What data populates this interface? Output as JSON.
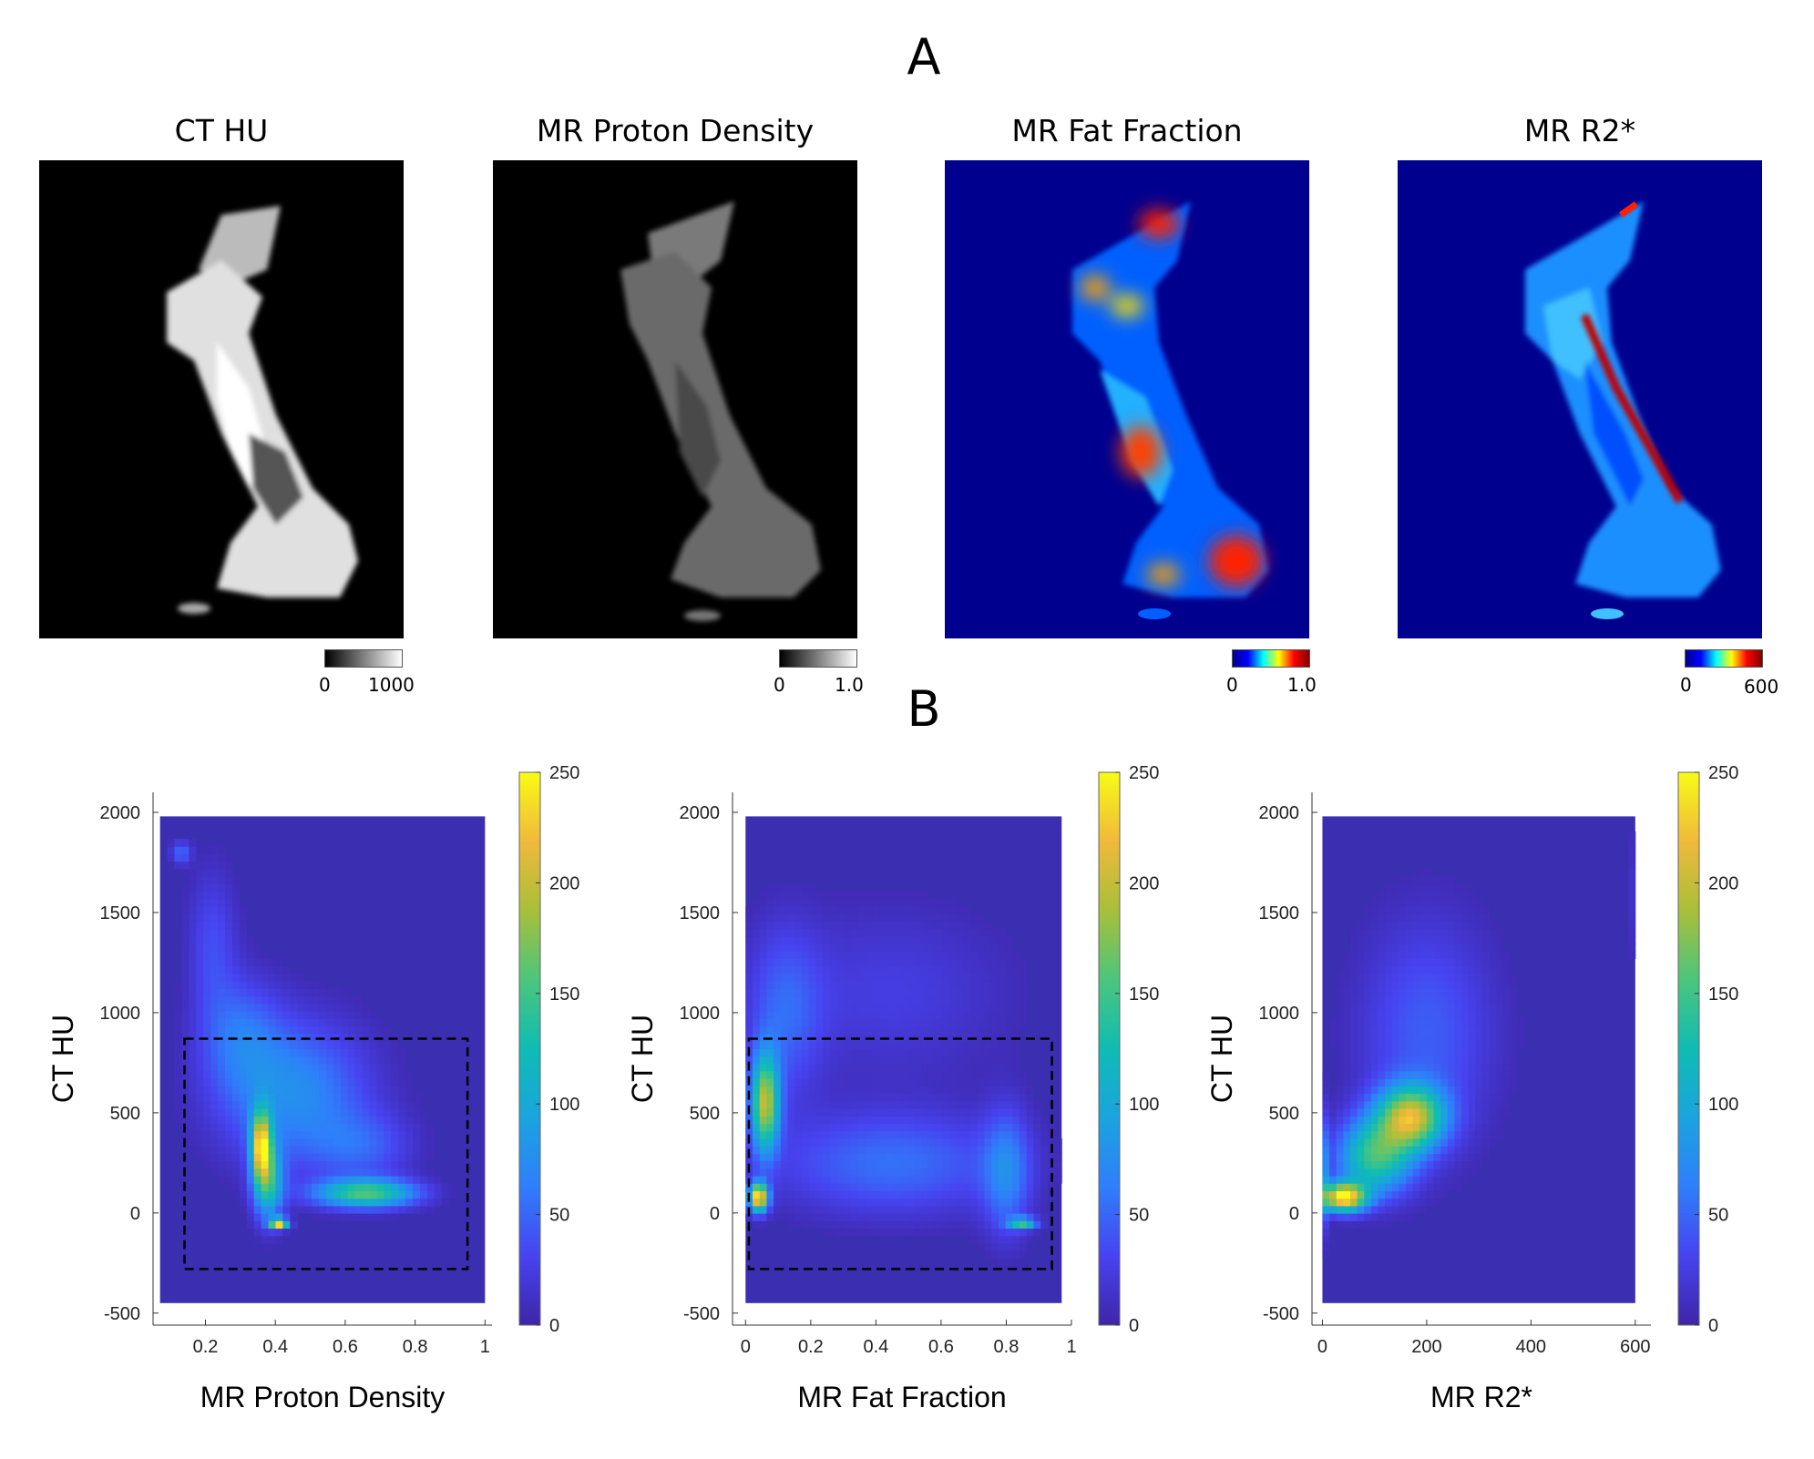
{
  "panel_a_label": "A",
  "panel_b_label": "B",
  "images": [
    {
      "id": "ct",
      "title": "CT HU",
      "colormap": "gray",
      "cbar_min": "0",
      "cbar_max": "1000"
    },
    {
      "id": "pd",
      "title": "MR Proton Density",
      "colormap": "gray",
      "cbar_min": "0",
      "cbar_max": "1.0"
    },
    {
      "id": "ff",
      "title": "MR Fat Fraction",
      "colormap": "jet",
      "cbar_min": "0",
      "cbar_max": "1.0"
    },
    {
      "id": "r2",
      "title": "MR R2*",
      "colormap": "jet",
      "cbar_min": "0",
      "cbar_max": "600"
    }
  ],
  "colors": {
    "heatmap_bg": "#3a2fb0",
    "parula": [
      "#3e26a8",
      "#4743f0",
      "#2f7efb",
      "#1aa4de",
      "#0fbcb4",
      "#4cc57c",
      "#a8bf3a",
      "#f0b93b",
      "#f9fb15"
    ],
    "jet": [
      "#00008f",
      "#0000ff",
      "#00ffff",
      "#ffff00",
      "#ff0000",
      "#800000"
    ]
  },
  "chart_data": [
    {
      "type": "heatmap",
      "id": "pd",
      "xlabel": "MR Proton Density",
      "ylabel": "CT HU",
      "xlim": [
        0.05,
        1.02
      ],
      "ylim": [
        -560,
        2100
      ],
      "xticks": [
        0.2,
        0.4,
        0.6,
        0.8,
        1
      ],
      "xtick_labels": [
        "0.2",
        "0.4",
        "0.6",
        "0.8",
        "1"
      ],
      "yticks": [
        -500,
        0,
        500,
        1000,
        1500,
        2000
      ],
      "ytick_labels": [
        "-500",
        "0",
        "500",
        "1000",
        "1500",
        "2000"
      ],
      "data_extent": {
        "x": [
          0.07,
          1.0
        ],
        "y": [
          -450,
          1980
        ]
      },
      "colorbar": {
        "min": 0,
        "max": 250,
        "ticks": [
          "0",
          "50",
          "100",
          "150",
          "200",
          "250"
        ]
      },
      "roi_box": {
        "x": [
          0.14,
          0.95
        ],
        "y": [
          -280,
          870
        ]
      },
      "hotspots": [
        {
          "x": 0.13,
          "y": 1800,
          "sx": 0.02,
          "sy": 40,
          "v": 50
        },
        {
          "x": 0.22,
          "y": 1350,
          "sx": 0.05,
          "sy": 260,
          "v": 35
        },
        {
          "x": 0.3,
          "y": 900,
          "sx": 0.08,
          "sy": 200,
          "v": 45
        },
        {
          "x": 0.45,
          "y": 600,
          "sx": 0.15,
          "sy": 250,
          "v": 75
        },
        {
          "x": 0.36,
          "y": 340,
          "sx": 0.02,
          "sy": 120,
          "v": 200
        },
        {
          "x": 0.38,
          "y": 150,
          "sx": 0.03,
          "sy": 130,
          "v": 120
        },
        {
          "x": 0.41,
          "y": -50,
          "sx": 0.018,
          "sy": 18,
          "v": 230
        },
        {
          "x": 0.66,
          "y": 100,
          "sx": 0.1,
          "sy": 50,
          "v": 150
        },
        {
          "x": 0.65,
          "y": 330,
          "sx": 0.1,
          "sy": 120,
          "v": 40
        }
      ]
    },
    {
      "type": "heatmap",
      "id": "ff",
      "xlabel": "MR Fat Fraction",
      "ylabel": "CT HU",
      "xlim": [
        -0.04,
        1.0
      ],
      "ylim": [
        -560,
        2100
      ],
      "xticks": [
        0,
        0.2,
        0.4,
        0.6,
        0.8,
        1
      ],
      "xtick_labels": [
        "0",
        "0.2",
        "0.4",
        "0.6",
        "0.8",
        "1"
      ],
      "yticks": [
        -500,
        0,
        500,
        1000,
        1500,
        2000
      ],
      "ytick_labels": [
        "-500",
        "0",
        "500",
        "1000",
        "1500",
        "2000"
      ],
      "data_extent": {
        "x": [
          0.0,
          0.97
        ],
        "y": [
          -450,
          1980
        ]
      },
      "colorbar": {
        "min": 0,
        "max": 250,
        "ticks": [
          "0",
          "50",
          "100",
          "150",
          "200",
          "250"
        ]
      },
      "roi_box": {
        "x": [
          0.01,
          0.94
        ],
        "y": [
          -280,
          870
        ]
      },
      "hotspots": [
        {
          "x": 0.06,
          "y": 550,
          "sx": 0.03,
          "sy": 170,
          "v": 185
        },
        {
          "x": 0.04,
          "y": 80,
          "sx": 0.02,
          "sy": 50,
          "v": 245
        },
        {
          "x": 0.12,
          "y": 1000,
          "sx": 0.08,
          "sy": 300,
          "v": 45
        },
        {
          "x": 0.45,
          "y": 250,
          "sx": 0.25,
          "sy": 180,
          "v": 55
        },
        {
          "x": 0.8,
          "y": 200,
          "sx": 0.05,
          "sy": 220,
          "v": 60
        },
        {
          "x": 0.85,
          "y": -50,
          "sx": 0.03,
          "sy": 20,
          "v": 130
        },
        {
          "x": 0.45,
          "y": 1100,
          "sx": 0.25,
          "sy": 300,
          "v": 25
        }
      ]
    },
    {
      "type": "heatmap",
      "id": "r2",
      "xlabel": "MR R2*",
      "ylabel": "CT HU",
      "xlim": [
        -20,
        630
      ],
      "ylim": [
        -560,
        2100
      ],
      "xticks": [
        0,
        200,
        400,
        600
      ],
      "xtick_labels": [
        "0",
        "200",
        "400",
        "600"
      ],
      "yticks": [
        -500,
        0,
        500,
        1000,
        1500,
        2000
      ],
      "ytick_labels": [
        "-500",
        "0",
        "500",
        "1000",
        "1500",
        "2000"
      ],
      "data_extent": {
        "x": [
          0,
          600
        ],
        "y": [
          -450,
          1980
        ]
      },
      "colorbar": {
        "min": 0,
        "max": 250,
        "ticks": [
          "0",
          "50",
          "100",
          "150",
          "200",
          "250"
        ]
      },
      "roi_box": null,
      "hotspots": [
        {
          "x": 40,
          "y": 80,
          "sx": 30,
          "sy": 50,
          "v": 240
        },
        {
          "x": 170,
          "y": 480,
          "sx": 45,
          "sy": 110,
          "v": 185
        },
        {
          "x": 100,
          "y": 280,
          "sx": 50,
          "sy": 130,
          "v": 140
        },
        {
          "x": 200,
          "y": 900,
          "sx": 90,
          "sy": 400,
          "v": 45
        },
        {
          "x": 2,
          "y": 200,
          "sx": 3,
          "sy": 200,
          "v": 160
        },
        {
          "x": 600,
          "y": 1600,
          "sx": 3,
          "sy": 250,
          "v": 160
        }
      ]
    }
  ]
}
